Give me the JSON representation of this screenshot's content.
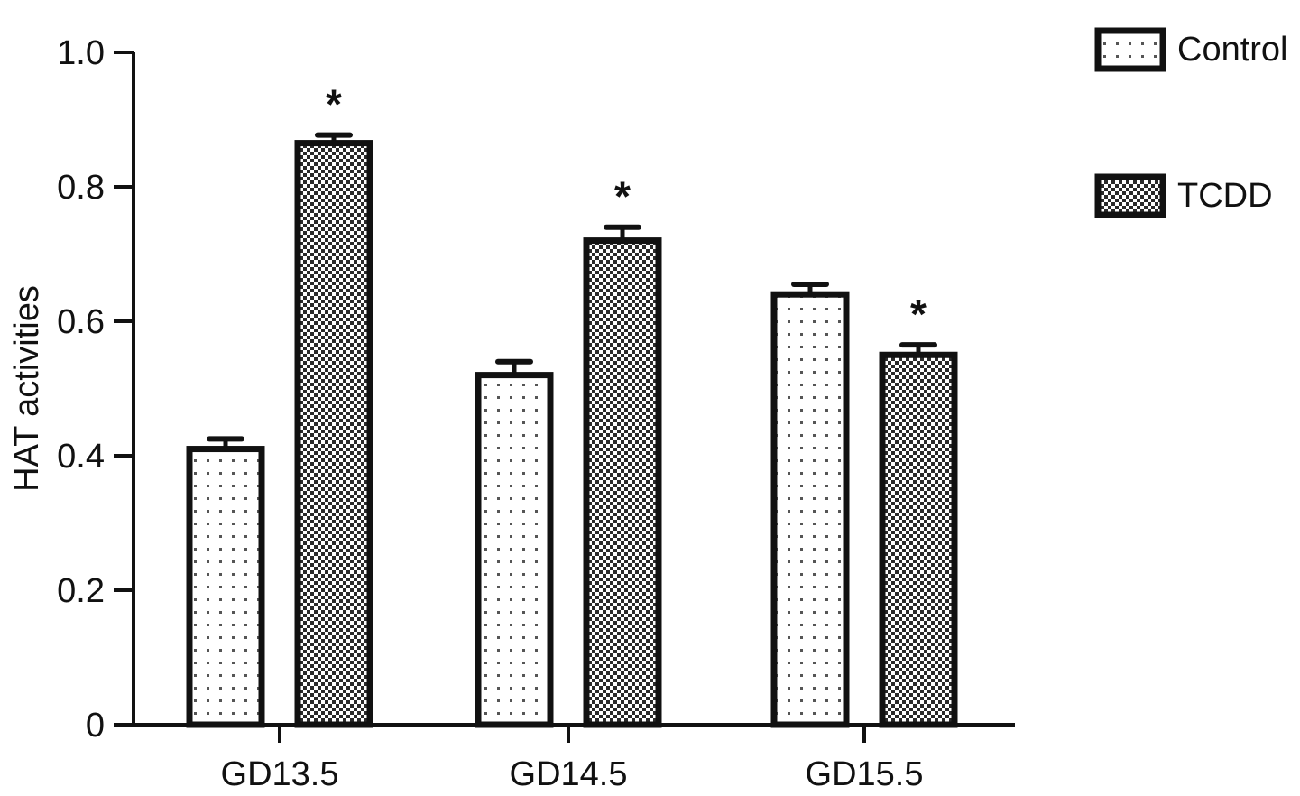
{
  "chart_data": {
    "type": "bar",
    "title": "",
    "xlabel": "",
    "ylabel": "HAT activities",
    "ylim": [
      0,
      1.0
    ],
    "yticks": [
      "0",
      "0.2",
      "0.4",
      "0.6",
      "0.8",
      "1.0"
    ],
    "ytick_values": [
      0,
      0.2,
      0.4,
      0.6,
      0.8,
      1.0
    ],
    "categories": [
      "GD13.5",
      "GD14.5",
      "GD15.5"
    ],
    "series": [
      {
        "name": "Control",
        "pattern": "light-dots",
        "values": [
          0.41,
          0.52,
          0.64
        ],
        "errors": [
          0.015,
          0.02,
          0.015
        ],
        "significance": [
          "",
          "",
          ""
        ]
      },
      {
        "name": "TCDD",
        "pattern": "dense-checker",
        "values": [
          0.865,
          0.72,
          0.55
        ],
        "errors": [
          0.012,
          0.02,
          0.015
        ],
        "significance": [
          "*",
          "*",
          "*"
        ]
      }
    ],
    "legend_position": "top-right",
    "grid": false
  }
}
